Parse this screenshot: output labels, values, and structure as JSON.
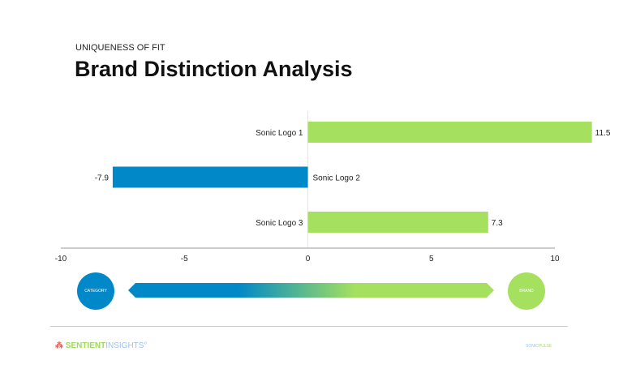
{
  "header": {
    "subtitle": "UNIQUENESS OF FIT",
    "title": "Brand Distinction Analysis"
  },
  "chart_data": {
    "type": "bar",
    "orientation": "horizontal",
    "categories": [
      "Sonic Logo 1",
      "Sonic Logo 2",
      "Sonic Logo 3"
    ],
    "values": [
      11.5,
      -7.9,
      7.3
    ],
    "value_labels": [
      "11.5",
      "-7.9",
      "7.3"
    ],
    "xlim": [
      -10,
      10
    ],
    "xticks": [
      "-10",
      "-5",
      "0",
      "5",
      "10"
    ],
    "colors": {
      "positive": "#a5e05f",
      "negative": "#0088c8"
    },
    "grid": false
  },
  "scale": {
    "left_label": "CATEGORY",
    "right_label": "BRAND"
  },
  "footer": {
    "brand_a": "SENTIENT",
    "brand_b": "INSIGHTS",
    "brand_mark": "°",
    "right_a": "SONIC",
    "right_b": "PULSE"
  }
}
